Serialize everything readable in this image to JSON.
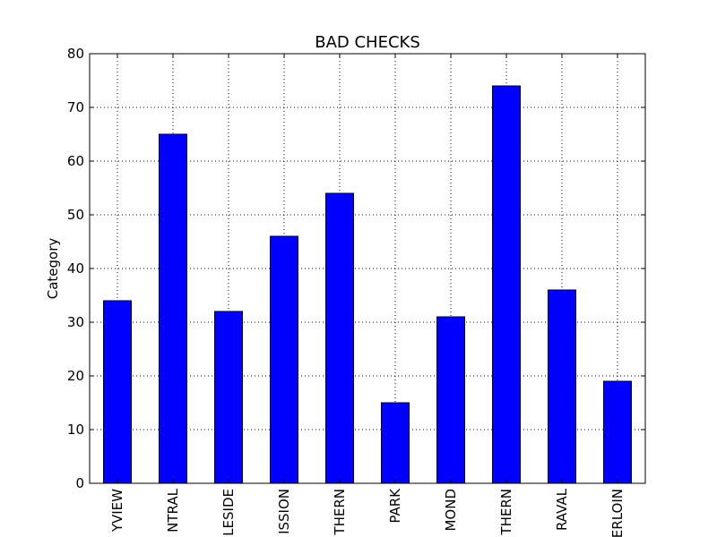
{
  "chart_data": {
    "type": "bar",
    "title": "BAD CHECKS",
    "xlabel": "",
    "ylabel": "Category",
    "ylim": [
      0,
      80
    ],
    "yticks": [
      0,
      10,
      20,
      30,
      40,
      50,
      60,
      70,
      80
    ],
    "grid": true,
    "categories": [
      "YVIEW",
      "NTRAL",
      "LESIDE",
      "ISSION",
      "THERN",
      "PARK",
      "MOND",
      "THERN",
      "RAVAL",
      "ERLOIN"
    ],
    "values": [
      34,
      65,
      32,
      46,
      54,
      15,
      31,
      74,
      36,
      19
    ],
    "colors": {
      "bar": "#0000ff",
      "edge": "#000000",
      "grid": "#000000"
    }
  }
}
